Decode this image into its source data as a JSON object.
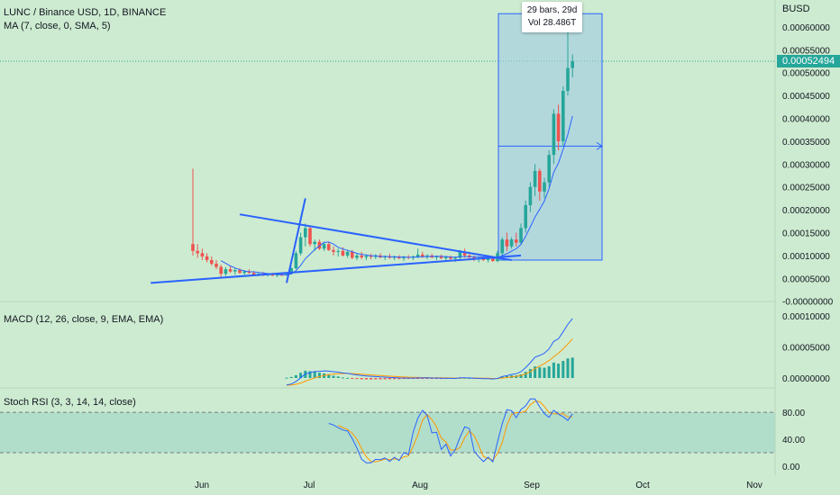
{
  "header": {
    "symbol": "LUNC / Binance USD, 1D, BINANCE",
    "ma_indicator": "MA (7, close, 0, SMA, 5)",
    "macd_indicator": "MACD (12, 26, close, 9, EMA, EMA)",
    "stoch_indicator": "Stoch RSI (3, 3, 14, 14, close)"
  },
  "price_axis": {
    "currency": "BUSD",
    "current_price": "0.00052494",
    "current_color": "#26a69a"
  },
  "tooltip": {
    "line1": "29 bars, 29d",
    "line2": "Vol 28.486T"
  },
  "colors": {
    "background": "#cdebd0",
    "up": "#26a69a",
    "down": "#ef5350",
    "trendline": "#2962ff",
    "ma": "#2962ff",
    "macd": "#2962ff",
    "signal": "#ff9800",
    "hist": "#26a69a",
    "stoch_k": "#2962ff",
    "stoch_d": "#ff9800",
    "measure_fill": "#9ec9e6"
  },
  "chart_data": [
    {
      "type": "candlestick",
      "title": "LUNC / Binance USD, 1D, BINANCE",
      "x_ticks": [
        "Jun",
        "Jul",
        "Aug",
        "Sep",
        "Oct",
        "Nov"
      ],
      "y_ticks": [
        "0.00060000",
        "0.00055000",
        "0.00050000",
        "0.00045000",
        "0.00040000",
        "0.00035000",
        "0.00030000",
        "0.00025000",
        "0.00020000",
        "0.00015000",
        "0.00010000",
        "0.00005000",
        "-0.00000000"
      ],
      "ylim": [
        0,
        0.00063
      ],
      "candles": [
        {
          "d": 0,
          "o": 0.000125,
          "h": 0.00029,
          "l": 0.0001,
          "c": 0.00011
        },
        {
          "d": 1,
          "o": 0.00011,
          "h": 0.000125,
          "l": 9.5e-05,
          "c": 0.000105
        },
        {
          "d": 2,
          "o": 0.000105,
          "h": 0.000115,
          "l": 9e-05,
          "c": 9.8e-05
        },
        {
          "d": 3,
          "o": 9.8e-05,
          "h": 0.000105,
          "l": 8.5e-05,
          "c": 9e-05
        },
        {
          "d": 4,
          "o": 9e-05,
          "h": 9.8e-05,
          "l": 7.8e-05,
          "c": 8.2e-05
        },
        {
          "d": 5,
          "o": 8.2e-05,
          "h": 9e-05,
          "l": 7e-05,
          "c": 7.5e-05
        },
        {
          "d": 6,
          "o": 7.5e-05,
          "h": 8e-05,
          "l": 5.2e-05,
          "c": 6e-05
        },
        {
          "d": 7,
          "o": 6e-05,
          "h": 7.5e-05,
          "l": 5.5e-05,
          "c": 7e-05
        },
        {
          "d": 8,
          "o": 7e-05,
          "h": 7.8e-05,
          "l": 6.2e-05,
          "c": 6.5e-05
        },
        {
          "d": 9,
          "o": 6.5e-05,
          "h": 7.2e-05,
          "l": 5.8e-05,
          "c": 6.8e-05
        },
        {
          "d": 10,
          "o": 6.8e-05,
          "h": 7.2e-05,
          "l": 6e-05,
          "c": 6.2e-05
        },
        {
          "d": 11,
          "o": 6.2e-05,
          "h": 6.8e-05,
          "l": 5.8e-05,
          "c": 6.5e-05
        },
        {
          "d": 12,
          "o": 6.5e-05,
          "h": 7e-05,
          "l": 6e-05,
          "c": 6.2e-05
        },
        {
          "d": 13,
          "o": 6.2e-05,
          "h": 6.6e-05,
          "l": 5.6e-05,
          "c": 5.8e-05
        },
        {
          "d": 14,
          "o": 5.8e-05,
          "h": 6.2e-05,
          "l": 5.5e-05,
          "c": 6e-05
        },
        {
          "d": 15,
          "o": 6e-05,
          "h": 6.4e-05,
          "l": 5.5e-05,
          "c": 5.7e-05
        },
        {
          "d": 16,
          "o": 5.7e-05,
          "h": 6.1e-05,
          "l": 5.4e-05,
          "c": 5.9e-05
        },
        {
          "d": 17,
          "o": 5.9e-05,
          "h": 6.2e-05,
          "l": 5.5e-05,
          "c": 5.6e-05
        },
        {
          "d": 18,
          "o": 5.6e-05,
          "h": 6e-05,
          "l": 5.3e-05,
          "c": 5.8e-05
        },
        {
          "d": 19,
          "o": 5.8e-05,
          "h": 6.1e-05,
          "l": 5.5e-05,
          "c": 5.7e-05
        },
        {
          "d": 20,
          "o": 5.7e-05,
          "h": 6.2e-05,
          "l": 5.5e-05,
          "c": 6e-05
        },
        {
          "d": 21,
          "o": 6e-05,
          "h": 7.5e-05,
          "l": 5.8e-05,
          "c": 7.2e-05
        },
        {
          "d": 22,
          "o": 7.2e-05,
          "h": 0.00011,
          "l": 7e-05,
          "c": 0.000105
        },
        {
          "d": 23,
          "o": 0.000105,
          "h": 0.00015,
          "l": 0.0001,
          "c": 0.00014
        },
        {
          "d": 24,
          "o": 0.00014,
          "h": 0.00017,
          "l": 0.00012,
          "c": 0.00016
        },
        {
          "d": 25,
          "o": 0.00016,
          "h": 0.000165,
          "l": 0.00012,
          "c": 0.000125
        },
        {
          "d": 26,
          "o": 0.000125,
          "h": 0.000135,
          "l": 0.00011,
          "c": 0.00013
        },
        {
          "d": 27,
          "o": 0.00013,
          "h": 0.000135,
          "l": 0.000112,
          "c": 0.000115
        },
        {
          "d": 28,
          "o": 0.000115,
          "h": 0.00013,
          "l": 0.00011,
          "c": 0.000125
        },
        {
          "d": 29,
          "o": 0.000125,
          "h": 0.00013,
          "l": 0.00011,
          "c": 0.000112
        },
        {
          "d": 30,
          "o": 0.000112,
          "h": 0.00012,
          "l": 0.0001,
          "c": 0.000108
        },
        {
          "d": 31,
          "o": 0.000108,
          "h": 0.000115,
          "l": 9.8e-05,
          "c": 0.00011
        },
        {
          "d": 32,
          "o": 0.00011,
          "h": 0.000118,
          "l": 9.8e-05,
          "c": 0.0001
        },
        {
          "d": 33,
          "o": 0.0001,
          "h": 0.000112,
          "l": 9.5e-05,
          "c": 0.000108
        },
        {
          "d": 34,
          "o": 0.000108,
          "h": 0.000112,
          "l": 9.2e-05,
          "c": 9.5e-05
        },
        {
          "d": 35,
          "o": 9.5e-05,
          "h": 0.000105,
          "l": 9e-05,
          "c": 0.0001
        },
        {
          "d": 36,
          "o": 0.0001,
          "h": 0.000108,
          "l": 9.2e-05,
          "c": 9.6e-05
        },
        {
          "d": 37,
          "o": 9.6e-05,
          "h": 0.000102,
          "l": 9e-05,
          "c": 9.9e-05
        },
        {
          "d": 38,
          "o": 9.9e-05,
          "h": 0.000104,
          "l": 9.2e-05,
          "c": 9.7e-05
        },
        {
          "d": 39,
          "o": 9.7e-05,
          "h": 0.000103,
          "l": 9.2e-05,
          "c": 0.0001
        },
        {
          "d": 40,
          "o": 0.0001,
          "h": 0.000105,
          "l": 9.4e-05,
          "c": 9.6e-05
        },
        {
          "d": 41,
          "o": 9.6e-05,
          "h": 0.0001,
          "l": 9e-05,
          "c": 9.8e-05
        },
        {
          "d": 42,
          "o": 9.8e-05,
          "h": 0.000104,
          "l": 9.3e-05,
          "c": 9.5e-05
        },
        {
          "d": 43,
          "o": 9.5e-05,
          "h": 0.0001,
          "l": 9e-05,
          "c": 9.7e-05
        },
        {
          "d": 44,
          "o": 9.7e-05,
          "h": 0.000101,
          "l": 9.2e-05,
          "c": 9.4e-05
        },
        {
          "d": 45,
          "o": 9.4e-05,
          "h": 9.9e-05,
          "l": 8.8e-05,
          "c": 9.7e-05
        },
        {
          "d": 46,
          "o": 9.7e-05,
          "h": 0.000101,
          "l": 9.2e-05,
          "c": 9.5e-05
        },
        {
          "d": 47,
          "o": 9.5e-05,
          "h": 0.0001,
          "l": 9e-05,
          "c": 9.8e-05
        },
        {
          "d": 48,
          "o": 9.8e-05,
          "h": 0.000115,
          "l": 9.4e-05,
          "c": 0.000102
        },
        {
          "d": 49,
          "o": 0.000102,
          "h": 0.000108,
          "l": 9.5e-05,
          "c": 9.8e-05
        },
        {
          "d": 50,
          "o": 9.8e-05,
          "h": 0.000103,
          "l": 9.2e-05,
          "c": 0.0001
        },
        {
          "d": 51,
          "o": 0.0001,
          "h": 0.000104,
          "l": 9.4e-05,
          "c": 9.6e-05
        },
        {
          "d": 52,
          "o": 9.6e-05,
          "h": 0.0001,
          "l": 9e-05,
          "c": 9.8e-05
        },
        {
          "d": 53,
          "o": 9.8e-05,
          "h": 0.000102,
          "l": 9.2e-05,
          "c": 9.4e-05
        },
        {
          "d": 54,
          "o": 9.4e-05,
          "h": 9.9e-05,
          "l": 8.8e-05,
          "c": 9.7e-05
        },
        {
          "d": 55,
          "o": 9.7e-05,
          "h": 0.0001,
          "l": 9e-05,
          "c": 9.3e-05
        },
        {
          "d": 56,
          "o": 9.3e-05,
          "h": 9.8e-05,
          "l": 8.6e-05,
          "c": 9.5e-05
        },
        {
          "d": 57,
          "o": 9.5e-05,
          "h": 0.000112,
          "l": 9.2e-05,
          "c": 0.000108
        },
        {
          "d": 58,
          "o": 0.000108,
          "h": 0.000115,
          "l": 9.5e-05,
          "c": 0.0001
        },
        {
          "d": 59,
          "o": 0.0001,
          "h": 0.000108,
          "l": 9.2e-05,
          "c": 9.6e-05
        },
        {
          "d": 60,
          "o": 9.6e-05,
          "h": 0.0001,
          "l": 8.8e-05,
          "c": 9.2e-05
        },
        {
          "d": 61,
          "o": 9.2e-05,
          "h": 9.8e-05,
          "l": 8.5e-05,
          "c": 9.5e-05
        },
        {
          "d": 62,
          "o": 9.5e-05,
          "h": 9.8e-05,
          "l": 8.8e-05,
          "c": 9e-05
        },
        {
          "d": 63,
          "o": 9e-05,
          "h": 9.5e-05,
          "l": 8.5e-05,
          "c": 9.3e-05
        },
        {
          "d": 64,
          "o": 9.3e-05,
          "h": 9.8e-05,
          "l": 8.6e-05,
          "c": 8.8e-05
        },
        {
          "d": 65,
          "o": 8.8e-05,
          "h": 0.00011,
          "l": 8.5e-05,
          "c": 0.000105
        },
        {
          "d": 66,
          "o": 0.000105,
          "h": 0.00014,
          "l": 0.0001,
          "c": 0.000135
        },
        {
          "d": 67,
          "o": 0.000135,
          "h": 0.00015,
          "l": 0.00011,
          "c": 0.00012
        },
        {
          "d": 68,
          "o": 0.00012,
          "h": 0.00014,
          "l": 0.000115,
          "c": 0.000135
        },
        {
          "d": 69,
          "o": 0.000135,
          "h": 0.00015,
          "l": 0.00012,
          "c": 0.000128
        },
        {
          "d": 70,
          "o": 0.000128,
          "h": 0.00017,
          "l": 0.000125,
          "c": 0.00016
        },
        {
          "d": 71,
          "o": 0.00016,
          "h": 0.00022,
          "l": 0.00015,
          "c": 0.00021
        },
        {
          "d": 72,
          "o": 0.00021,
          "h": 0.00026,
          "l": 0.000195,
          "c": 0.00025
        },
        {
          "d": 73,
          "o": 0.00025,
          "h": 0.0003,
          "l": 0.00023,
          "c": 0.000285
        },
        {
          "d": 74,
          "o": 0.000285,
          "h": 0.00029,
          "l": 0.00022,
          "c": 0.00024
        },
        {
          "d": 75,
          "o": 0.00024,
          "h": 0.00027,
          "l": 0.000225,
          "c": 0.00026
        },
        {
          "d": 76,
          "o": 0.00026,
          "h": 0.00033,
          "l": 0.00025,
          "c": 0.00032
        },
        {
          "d": 77,
          "o": 0.00032,
          "h": 0.00042,
          "l": 0.0003,
          "c": 0.00041
        },
        {
          "d": 78,
          "o": 0.00041,
          "h": 0.00043,
          "l": 0.00033,
          "c": 0.00035
        },
        {
          "d": 79,
          "o": 0.00035,
          "h": 0.00047,
          "l": 0.00034,
          "c": 0.00046
        },
        {
          "d": 80,
          "o": 0.00046,
          "h": 0.0006,
          "l": 0.00045,
          "c": 0.00051
        },
        {
          "d": 81,
          "o": 0.00051,
          "h": 0.00054,
          "l": 0.00049,
          "c": 0.000525
        }
      ],
      "trendlines": [
        {
          "from": [
            -9,
            4e-05
          ],
          "to": [
            70,
            0.0001
          ]
        },
        {
          "from": [
            10,
            0.00019
          ],
          "to": [
            68,
            9e-05
          ]
        },
        {
          "from": [
            20,
            4e-05
          ],
          "to": [
            24,
            0.000225
          ]
        }
      ],
      "measure_box": {
        "from_day": 65,
        "to_day": 94,
        "low": 9e-05,
        "high": 0.000625,
        "mid": 0.000355
      },
      "ma_line": true
    },
    {
      "type": "line",
      "title": "MACD (12, 26, close, 9, EMA, EMA)",
      "y_ticks": [
        "0.00010000",
        "0.00005000",
        "0.00000000"
      ],
      "ylim": [
        -1.2e-05,
        0.000108
      ]
    },
    {
      "type": "line",
      "title": "Stoch RSI (3, 3, 14, 14, close)",
      "y_ticks": [
        "80.00",
        "40.00",
        "0.00"
      ],
      "ylim": [
        -8,
        108
      ],
      "band": [
        20,
        80
      ],
      "k": [
        null,
        null,
        null,
        null,
        null,
        null,
        null,
        null,
        null,
        null,
        null,
        null,
        null,
        null,
        null,
        null,
        null,
        null,
        null,
        null,
        null,
        null,
        null,
        null,
        null,
        null,
        null,
        null,
        null,
        null,
        null,
        null,
        null,
        null,
        null,
        null,
        null,
        null,
        null,
        null,
        null,
        null,
        null,
        null,
        null,
        null,
        null,
        null,
        null,
        null,
        null,
        null,
        null,
        null,
        null,
        null,
        null,
        null,
        null,
        null,
        null,
        null,
        null,
        null,
        null,
        null,
        null,
        null,
        null,
        null,
        null,
        null,
        null,
        null,
        null,
        null,
        null,
        null,
        null,
        null,
        null,
        null
      ]
    }
  ]
}
